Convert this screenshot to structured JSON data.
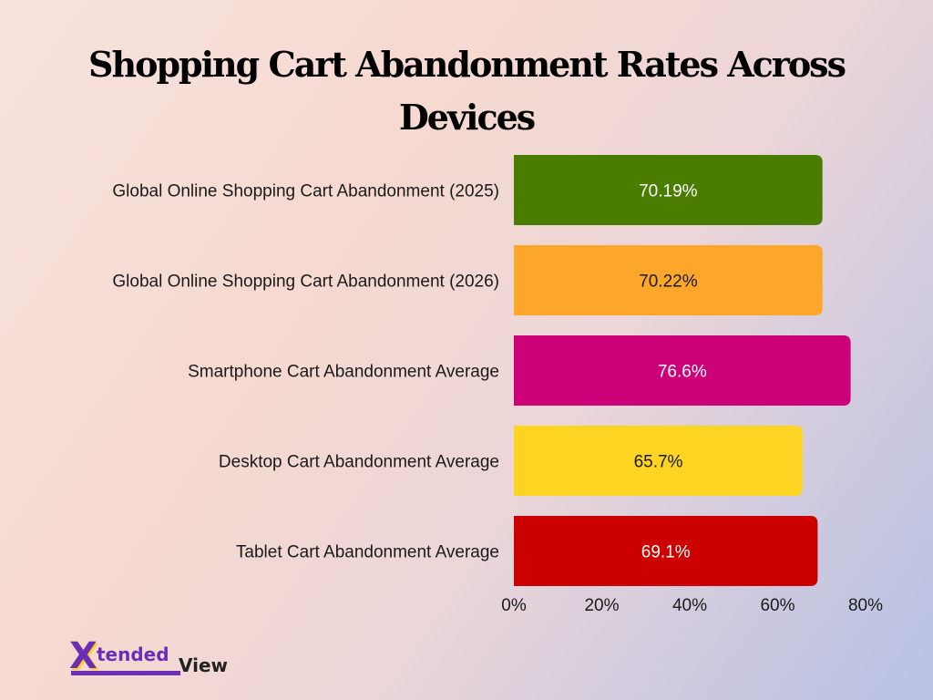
{
  "chart_data": {
    "type": "bar",
    "orientation": "horizontal",
    "title": "Shopping Cart Abandonment Rates Across Devices",
    "xlabel": "",
    "ylabel": "",
    "categories": [
      "Global Online Shopping Cart Abandonment (2025)",
      "Global Online Shopping Cart Abandonment (2026)",
      "Smartphone Cart Abandonment Average",
      "Desktop Cart Abandonment Average",
      "Tablet Cart Abandonment Average"
    ],
    "values": [
      70.19,
      70.22,
      76.6,
      65.7,
      69.1
    ],
    "data_labels": [
      "70.19%",
      "70.22%",
      "76.6%",
      "65.7%",
      "69.1%"
    ],
    "bar_colors": [
      "#4a7c00",
      "#fca62a",
      "#cc0077",
      "#fdd422",
      "#cc0000"
    ],
    "label_colors": [
      "#ffffff",
      "#1a1a1a",
      "#ffffff",
      "#1a1a1a",
      "#ffffff"
    ],
    "xlim": [
      0,
      80
    ],
    "ticks": [
      0,
      20,
      40,
      60,
      80
    ],
    "tick_labels": [
      "0%",
      "20%",
      "40%",
      "60%",
      "80%"
    ],
    "grid": false,
    "legend": "none"
  },
  "brand": {
    "logo_x": "X",
    "logo_word": "tended",
    "logo_view": "View"
  }
}
